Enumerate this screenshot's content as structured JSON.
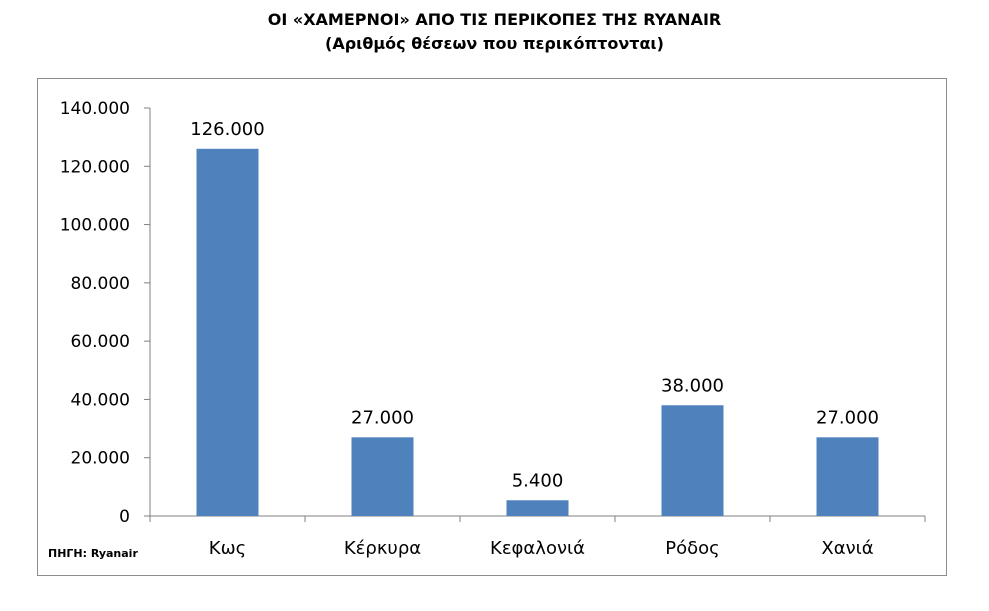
{
  "title": "ΟΙ «ΧΑΜΕΡΝΟΙ» ΑΠΟ ΤΙΣ ΠΕΡΙΚΟΠΕΣ ΤΗΣ RYANAIR",
  "subtitle": "(Αριθμός θέσεων που περικόπτονται)",
  "source": "ΠΗΓΗ: Ryanair",
  "colors": {
    "bar": "#4f81bd",
    "axis": "#808080",
    "frame": "#8c8c8c"
  },
  "chart_data": {
    "type": "bar",
    "title": "ΟΙ «ΧΑΜΕΡΝΟΙ» ΑΠΟ ΤΙΣ ΠΕΡΙΚΟΠΕΣ ΤΗΣ RYANAIR",
    "subtitle": "(Αριθμός θέσεων που περικόπτονται)",
    "categories": [
      "Κως",
      "Κέρκυρα",
      "Κεφαλονιά",
      "Ρόδος",
      "Χανιά"
    ],
    "values": [
      126000,
      27000,
      5400,
      38000,
      27000
    ],
    "data_labels": [
      "126.000",
      "27.000",
      "5.400",
      "38.000",
      "27.000"
    ],
    "ylim": [
      0,
      140000
    ],
    "yticks": [
      0,
      20000,
      40000,
      60000,
      80000,
      100000,
      120000,
      140000
    ],
    "ytick_labels": [
      "0",
      "20.000",
      "40.000",
      "60.000",
      "80.000",
      "100.000",
      "120.000",
      "140.000"
    ],
    "xlabel": "",
    "ylabel": "",
    "grid": false,
    "legend": "none"
  }
}
